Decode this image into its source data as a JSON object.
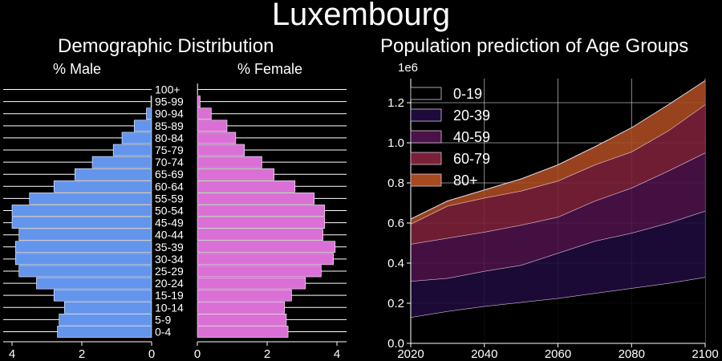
{
  "page_title": "Luxembourg",
  "chart_data": [
    {
      "type": "bar",
      "orientation": "horizontal",
      "title": "Demographic Distribution",
      "xlabel_left": "% Male",
      "xlabel_right": "% Female",
      "xlim": [
        0,
        4.3
      ],
      "xticks": [
        "4",
        "2",
        "0",
        "2",
        "4"
      ],
      "categories": [
        "0-4",
        "5-9",
        "10-14",
        "15-19",
        "20-24",
        "25-29",
        "30-34",
        "35-39",
        "40-44",
        "45-49",
        "50-54",
        "55-59",
        "60-64",
        "65-69",
        "70-74",
        "75-79",
        "80-84",
        "85-89",
        "90-94",
        "95-99",
        "100+"
      ],
      "series": [
        {
          "name": "% Male",
          "color": "#6495ed",
          "values": [
            2.7,
            2.65,
            2.5,
            2.8,
            3.3,
            3.8,
            3.9,
            3.9,
            3.8,
            4.0,
            4.0,
            3.5,
            2.8,
            2.2,
            1.7,
            1.1,
            0.85,
            0.5,
            0.15,
            0.02,
            0.0
          ]
        },
        {
          "name": "% Female",
          "color": "#da70d6",
          "values": [
            2.6,
            2.55,
            2.5,
            2.7,
            3.1,
            3.55,
            3.9,
            3.95,
            3.6,
            3.65,
            3.65,
            3.35,
            2.8,
            2.2,
            1.85,
            1.35,
            1.1,
            0.85,
            0.4,
            0.08,
            0.01
          ]
        }
      ],
      "grid": true
    },
    {
      "type": "area",
      "stacked": true,
      "title": "Population prediction of Age Groups",
      "offset_label": "1e6",
      "x": [
        2020,
        2030,
        2040,
        2050,
        2060,
        2070,
        2080,
        2090,
        2100
      ],
      "xticks": [
        "2020",
        "2040",
        "2060",
        "2080",
        "2100"
      ],
      "ylim": [
        0,
        1.32
      ],
      "yticks": [
        "0.0",
        "0.2",
        "0.4",
        "0.6",
        "0.8",
        "1.0",
        "1.2"
      ],
      "legend_position": "top-left",
      "series": [
        {
          "name": "0-19",
          "color": "#000000",
          "values": [
            0.13,
            0.16,
            0.185,
            0.205,
            0.225,
            0.25,
            0.275,
            0.3,
            0.33
          ]
        },
        {
          "name": "20-39",
          "color": "#1e0a3c",
          "values": [
            0.18,
            0.165,
            0.175,
            0.185,
            0.225,
            0.26,
            0.275,
            0.3,
            0.33
          ]
        },
        {
          "name": "40-59",
          "color": "#4a1248",
          "values": [
            0.185,
            0.2,
            0.195,
            0.2,
            0.18,
            0.2,
            0.225,
            0.26,
            0.29
          ]
        },
        {
          "name": "60-79",
          "color": "#7a2038",
          "values": [
            0.1,
            0.16,
            0.17,
            0.17,
            0.18,
            0.18,
            0.18,
            0.2,
            0.24
          ]
        },
        {
          "name": "80+",
          "color": "#a84a20",
          "values": [
            0.025,
            0.025,
            0.04,
            0.06,
            0.08,
            0.09,
            0.12,
            0.13,
            0.12
          ]
        }
      ],
      "grid": true
    }
  ]
}
